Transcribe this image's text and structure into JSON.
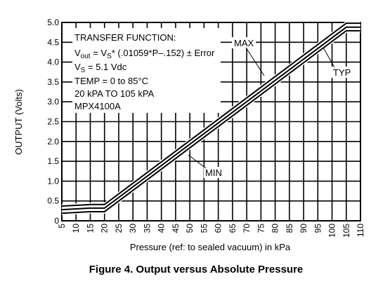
{
  "figure_caption": "Figure 4. Output versus Absolute Pressure",
  "chart_data": {
    "type": "line",
    "title": "",
    "xlabel": "Pressure (ref: to sealed vacuum) in kPa",
    "ylabel": "OUTPUT (Volts)",
    "xlim": [
      5,
      110
    ],
    "ylim": [
      0,
      5.0
    ],
    "x_ticks": [
      5,
      10,
      15,
      20,
      25,
      30,
      35,
      40,
      45,
      50,
      55,
      60,
      65,
      70,
      75,
      80,
      85,
      90,
      95,
      100,
      105,
      110
    ],
    "y_ticks": [
      0,
      0.5,
      1.0,
      1.5,
      2.0,
      2.5,
      3.0,
      3.5,
      4.0,
      4.5,
      5.0
    ],
    "y_tick_labels": [
      "0",
      "0.5",
      "1.0",
      "1.5",
      "2.0",
      "2.5",
      "3.0",
      "3.5",
      "4.0",
      "4.5",
      "5.0"
    ],
    "grid": true,
    "series": [
      {
        "name": "MAX",
        "x": [
          5,
          15,
          20,
          105,
          110
        ],
        "y": [
          0.37,
          0.41,
          0.41,
          4.98,
          4.98
        ]
      },
      {
        "name": "TYP",
        "x": [
          5,
          15,
          20,
          105,
          110
        ],
        "y": [
          0.28,
          0.32,
          0.32,
          4.88,
          4.88
        ]
      },
      {
        "name": "MIN",
        "x": [
          5,
          15,
          20,
          105,
          110
        ],
        "y": [
          0.19,
          0.23,
          0.23,
          4.79,
          4.79
        ]
      }
    ],
    "annotation_box": {
      "line1": "TRANSFER FUNCTION:",
      "line2_vout": "V",
      "line2_vout_sub": "out",
      "line2_eq": " = V",
      "line2_vs_sub": "S",
      "line2_rest": "* (.01059*P–.152) ± Error",
      "line3_vs": "V",
      "line3_vs_sub": "S",
      "line3_rest": " = 5.1 Vdc",
      "line4": "TEMP = 0 to 85°C",
      "line5": "20 kPA TO 105 kPA",
      "line6": "MPX4100A"
    }
  }
}
